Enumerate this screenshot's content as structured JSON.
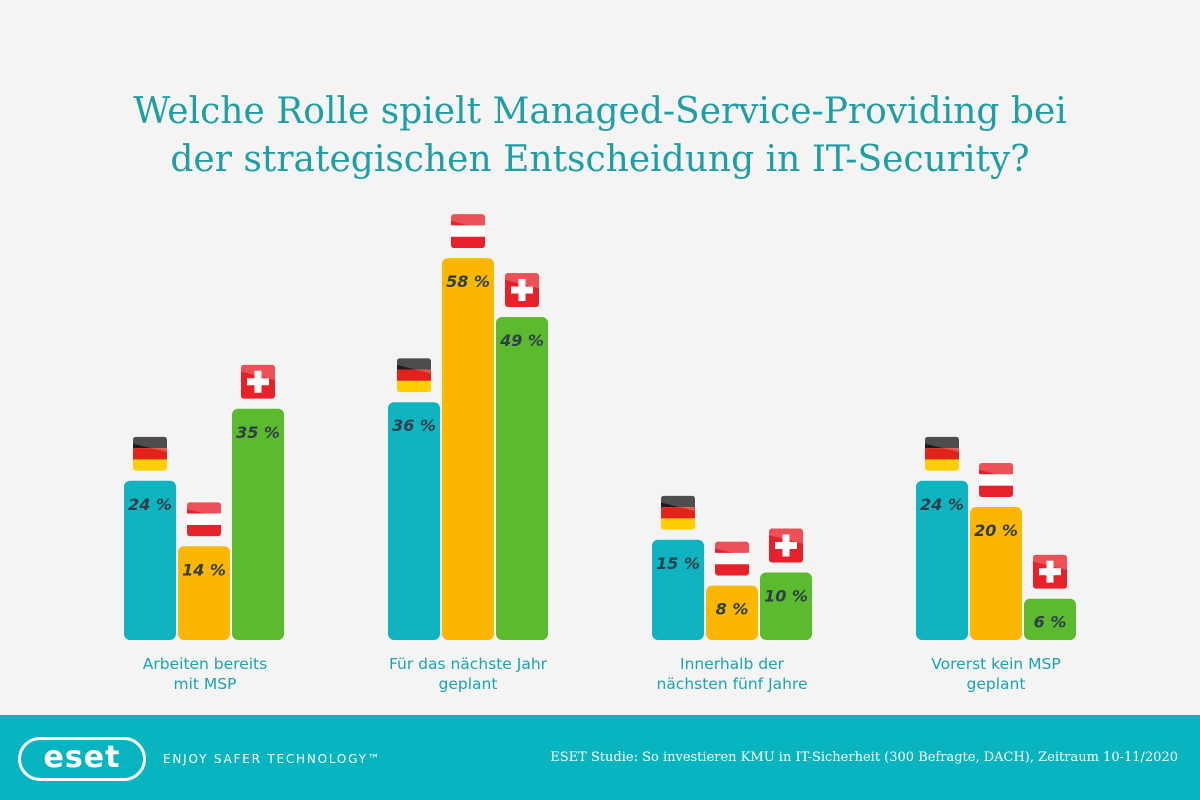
{
  "title_lines": [
    "Welche Rolle spielt Managed-Service-Providing bei",
    "der strategischen Entscheidung in IT-Security?"
  ],
  "chart_data": {
    "type": "bar",
    "categories": [
      "Arbeiten bereits mit MSP",
      "Für das nächste Jahr geplant",
      "Innerhalb der nächsten fünf Jahre",
      "Vorerst kein MSP geplant"
    ],
    "category_lines": [
      [
        "Arbeiten bereits",
        "mit MSP"
      ],
      [
        "Für das nächste Jahr",
        "geplant"
      ],
      [
        "Innerhalb der",
        "nächsten fünf Jahre"
      ],
      [
        "Vorerst kein MSP",
        "geplant"
      ]
    ],
    "series": [
      {
        "flag": "germany-flag",
        "color": "#0fb4c0",
        "values": [
          24,
          36,
          15,
          24
        ]
      },
      {
        "flag": "austria-flag",
        "color": "#fbb700",
        "values": [
          14,
          58,
          8,
          20
        ]
      },
      {
        "flag": "switzerland-flag",
        "color": "#5cba2f",
        "values": [
          35,
          49,
          10,
          6
        ]
      }
    ],
    "value_suffix": " %",
    "ylim": [
      0,
      60
    ],
    "grid": false,
    "legend": "none (flag icons above bars)"
  },
  "footer": {
    "logo_text": "eset",
    "tagline": "ENJOY SAFER TECHNOLOGY™",
    "source": "ESET Studie: So investieren KMU in IT-Sicherheit (300 Befragte, DACH), Zeitraum 10-11/2020",
    "background": "#07b4c0"
  }
}
